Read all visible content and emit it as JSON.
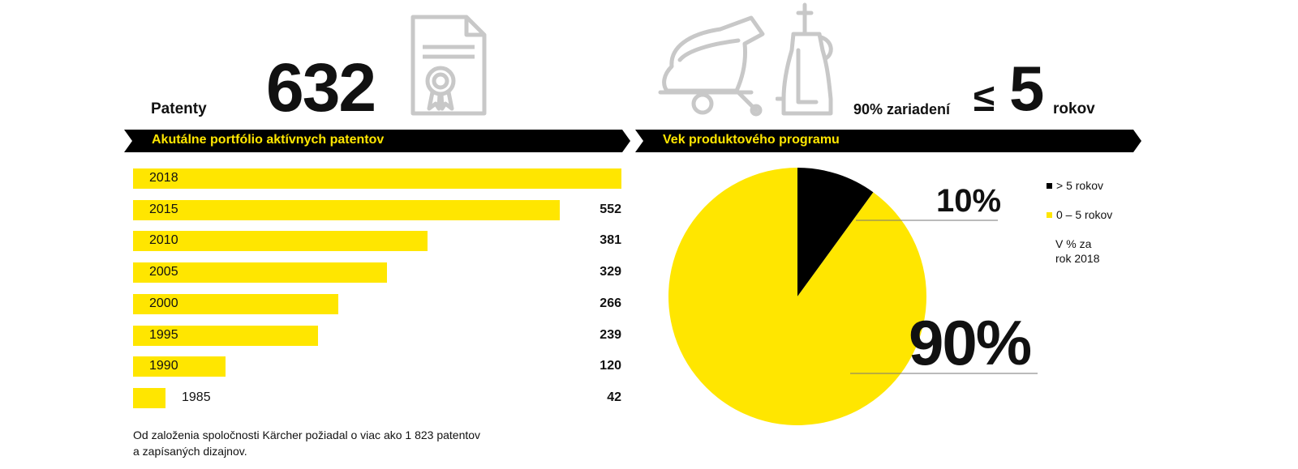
{
  "header": {
    "patents_label": "Patenty",
    "patents_count": "632",
    "devices_label": "90% zariadení",
    "le_sign": "≤",
    "devices_years": "5",
    "devices_unit": "rokov"
  },
  "banners": {
    "left": "Akutálne portfólio aktívnych patentov",
    "right": "Vek produktového programu"
  },
  "footnote": {
    "line1": "Od založenia spoločnosti Kärcher požiadal o viac ako 1 823 patentov",
    "line2": "a zapísaných dizajnov."
  },
  "colors": {
    "yellow": "#ffe600",
    "black": "#000000",
    "icon_gray": "#c8c8c8"
  },
  "icons": [
    "certificate-icon",
    "floor-scrubber-icon",
    "pressure-washer-icon"
  ],
  "chart_data": [
    {
      "type": "bar",
      "orientation": "horizontal",
      "categories": [
        "2018",
        "2015",
        "2010",
        "2005",
        "2000",
        "1995",
        "1990",
        "1985"
      ],
      "values": [
        632,
        552,
        381,
        329,
        266,
        239,
        120,
        42
      ],
      "value_labels": [
        "",
        "552",
        "381",
        "329",
        "266",
        "239",
        "120",
        "42"
      ],
      "xlim": [
        0,
        632
      ],
      "title": "Akutálne portfólio aktívnych patentov",
      "grid": false
    },
    {
      "type": "pie",
      "title": "Vek produktového programu",
      "slices": [
        {
          "label": "> 5 rokov",
          "value": 10,
          "display": "10%",
          "color": "#000000"
        },
        {
          "label": "0 – 5 rokov",
          "value": 90,
          "display": "90%",
          "color": "#ffe600"
        }
      ],
      "legend_note_line1": "V % za",
      "legend_note_line2": "rok 2018",
      "legend_position": "right"
    }
  ]
}
